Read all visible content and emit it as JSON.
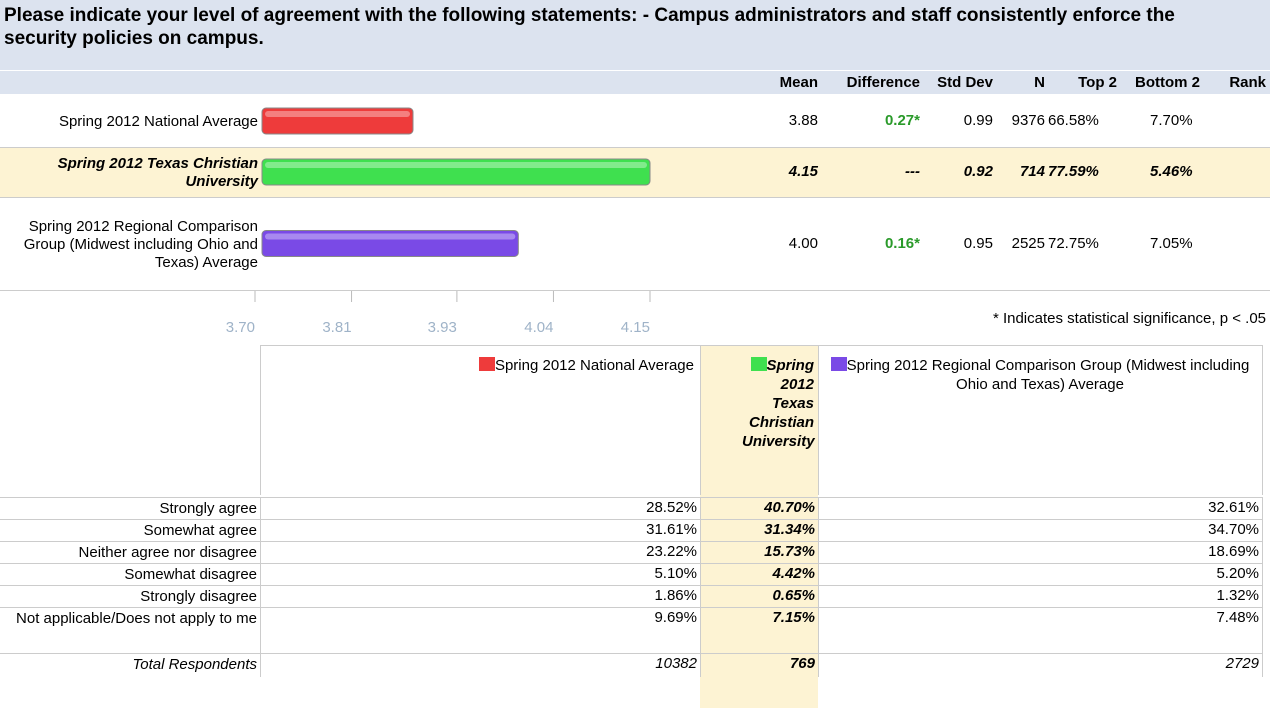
{
  "title": "Please indicate your level of agreement with the following statements: - Campus administrators and staff consistently enforce the security policies on campus.",
  "chart_data": {
    "type": "bar",
    "orientation": "horizontal",
    "categories": [
      "Spring 2012 National Average",
      "Spring 2012 Texas Christian University",
      "Spring 2012 Regional Comparison Group (Midwest including Ohio and Texas) Average"
    ],
    "values": [
      3.88,
      4.15,
      4.0
    ],
    "value_labels": [
      "3.88",
      "4.15",
      "4.00"
    ],
    "colors": [
      "#ee3b3b",
      "#3fe04f",
      "#7a4ae6"
    ],
    "xlim": [
      3.7,
      4.15
    ],
    "xticks": [
      {
        "value": 3.7,
        "label": "3.70"
      },
      3.81,
      3.93,
      4.04,
      4.15
    ]
  },
  "summary": {
    "columns": [
      "Mean",
      "Difference",
      "Std Dev",
      "N",
      "Top 2",
      "Bottom 2",
      "Rank"
    ],
    "rows": [
      {
        "difference": "0.27*",
        "std_dev": "0.99",
        "n": 9376,
        "top2": "66.58%",
        "bottom2": "7.70%"
      },
      {
        "difference": "---",
        "std_dev": "0.92",
        "n": 714,
        "top2": "77.59%",
        "bottom2": "5.46%"
      },
      {
        "difference": "0.16*",
        "std_dev": "0.95",
        "n": 2525,
        "top2": "72.75%",
        "bottom2": "7.05%"
      }
    ]
  },
  "note": "* Indicates statistical significance, p < .05",
  "distribution": {
    "rows": [
      {
        "label": "Strongly agree",
        "values": [
          "28.52%",
          "40.70%",
          "32.61%"
        ]
      },
      {
        "label": "Somewhat agree",
        "values": [
          "31.61%",
          "31.34%",
          "34.70%"
        ]
      },
      {
        "label": "Neither agree nor disagree",
        "values": [
          "23.22%",
          "15.73%",
          "18.69%"
        ]
      },
      {
        "label": "Somewhat disagree",
        "values": [
          "5.10%",
          "4.42%",
          "5.20%"
        ]
      },
      {
        "label": "Strongly disagree",
        "values": [
          "1.86%",
          "0.65%",
          "1.32%"
        ]
      },
      {
        "label": "Not applicable/Does not apply to me",
        "values": [
          "9.69%",
          "7.15%",
          "7.48%"
        ]
      }
    ],
    "total": {
      "label": "Total Respondents",
      "values": [
        10382,
        769,
        2729
      ]
    }
  }
}
